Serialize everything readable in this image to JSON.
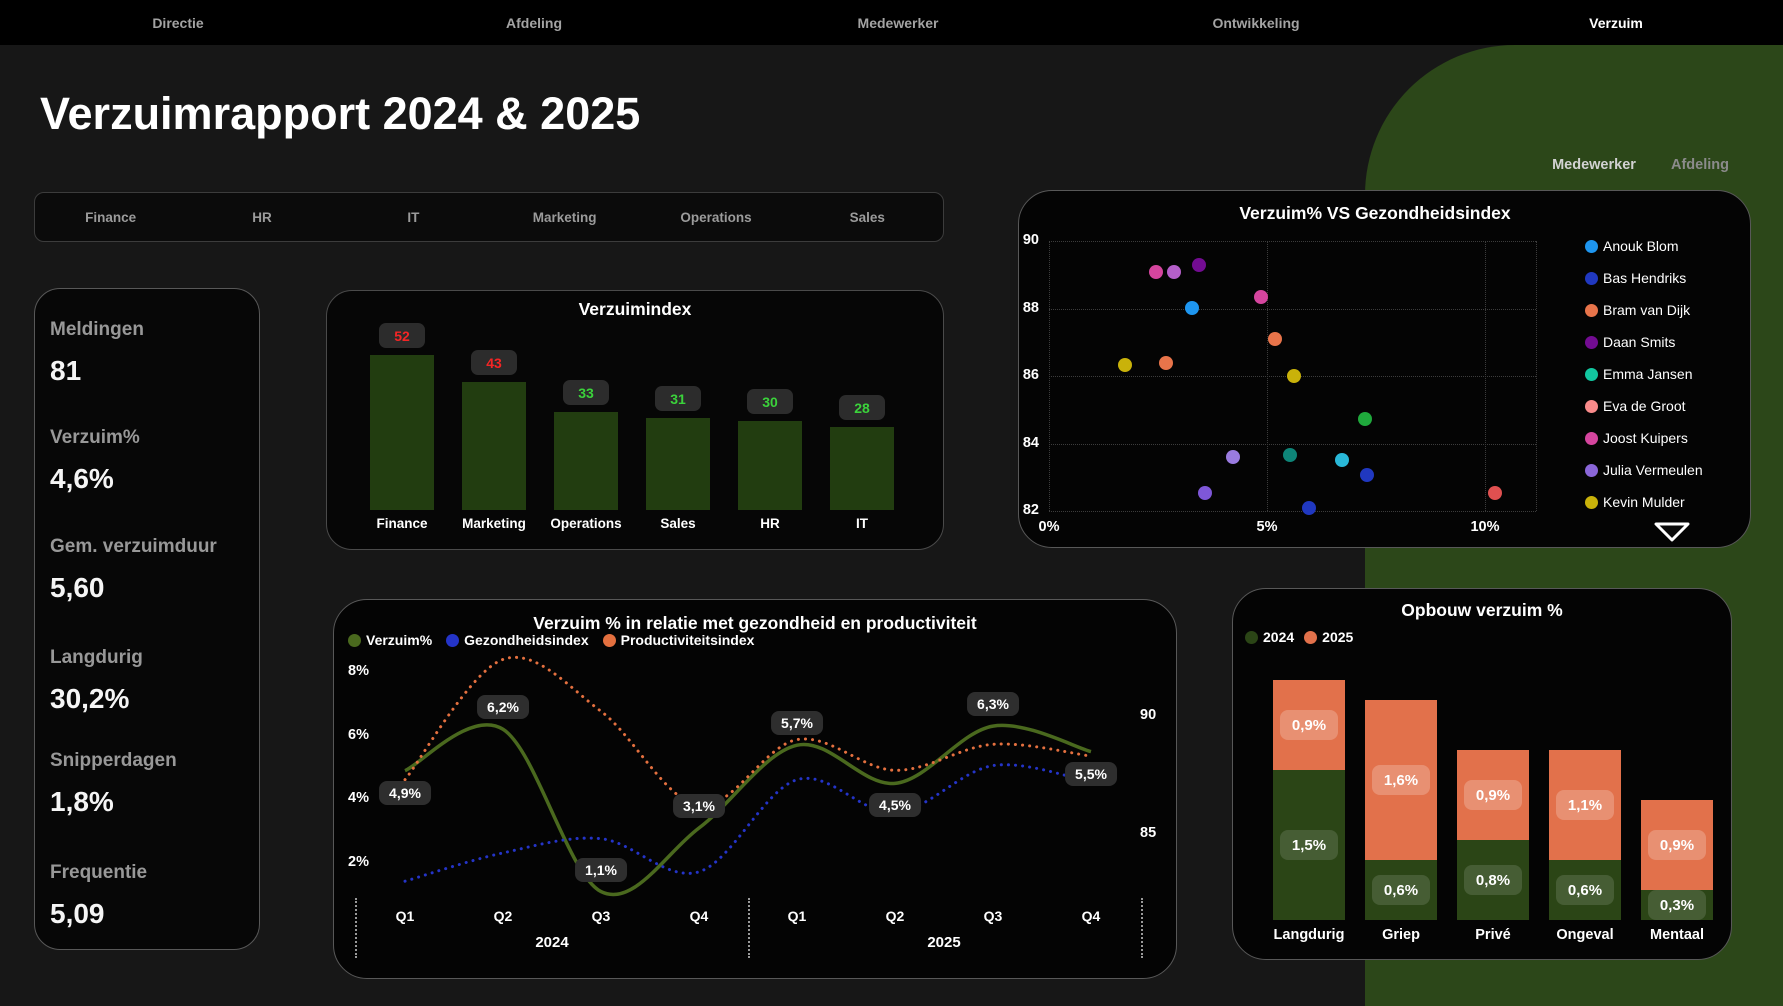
{
  "page": {
    "title": "Verzuimrapport 2024 & 2025"
  },
  "nav": {
    "items": [
      {
        "label": "Directie",
        "active": false
      },
      {
        "label": "Afdeling",
        "active": false
      },
      {
        "label": "Medewerker",
        "active": false
      },
      {
        "label": "Ontwikkeling",
        "active": false
      },
      {
        "label": "Verzuim",
        "active": true
      }
    ]
  },
  "slicer": {
    "items": [
      "Finance",
      "HR",
      "IT",
      "Marketing",
      "Operations",
      "Sales"
    ]
  },
  "kpis": [
    {
      "label": "Meldingen",
      "value": "81"
    },
    {
      "label": "Verzuim%",
      "value": "4,6%"
    },
    {
      "label": "Gem. verzuimduur",
      "value": "5,60"
    },
    {
      "label": "Langdurig",
      "value": "30,2%"
    },
    {
      "label": "Snipperdagen",
      "value": "1,8%"
    },
    {
      "label": "Frequentie",
      "value": "5,09"
    }
  ],
  "chart_data": [
    {
      "id": "verzuimindex",
      "type": "bar",
      "title": "Verzuimindex",
      "categories": [
        "Finance",
        "Marketing",
        "Operations",
        "Sales",
        "HR",
        "IT"
      ],
      "values": [
        52,
        43,
        33,
        31,
        30,
        28
      ],
      "value_labels": [
        "52",
        "43",
        "33",
        "31",
        "30",
        "28"
      ],
      "value_label_colors": [
        "#f42525",
        "#f42525",
        "#3bd23b",
        "#3bd23b",
        "#3bd23b",
        "#3bd23b"
      ],
      "bar_color": "#223d10",
      "ylim": [
        0,
        60
      ]
    },
    {
      "id": "scatter",
      "type": "scatter",
      "title": "Verzuim% VS Gezondheidsindex",
      "tabs": [
        {
          "label": "Medewerker",
          "active": true
        },
        {
          "label": "Afdeling",
          "active": false
        }
      ],
      "x_ticks": [
        {
          "value": 0,
          "label": "0%"
        },
        {
          "value": 5,
          "label": "5%"
        },
        {
          "value": 10,
          "label": "10%"
        }
      ],
      "y_ticks": [
        90,
        88,
        86,
        84,
        82
      ],
      "xlim": [
        0,
        11.35
      ],
      "ylim": [
        82,
        90
      ],
      "legend": [
        {
          "name": "Anouk Blom",
          "color": "#1E96F0"
        },
        {
          "name": "Bas Hendriks",
          "color": "#2038C0"
        },
        {
          "name": "Bram van Dijk",
          "color": "#E8744A"
        },
        {
          "name": "Daan Smits",
          "color": "#730C92"
        },
        {
          "name": "Emma Jansen",
          "color": "#12C7A0"
        },
        {
          "name": "Eva de Groot",
          "color": "#F98B8B"
        },
        {
          "name": "Joost Kuipers",
          "color": "#D5459E"
        },
        {
          "name": "Julia Vermeulen",
          "color": "#8A66D8"
        },
        {
          "name": "Kevin Mulder",
          "color": "#C9B20A"
        }
      ],
      "points": [
        {
          "x": 2.45,
          "y": 89.08,
          "color": "#D5459E"
        },
        {
          "x": 2.87,
          "y": 89.08,
          "color": "#B55FC9"
        },
        {
          "x": 3.43,
          "y": 89.29,
          "color": "#730C92"
        },
        {
          "x": 4.86,
          "y": 88.34,
          "color": "#D5459E"
        },
        {
          "x": 3.27,
          "y": 88.01,
          "color": "#1E96F0"
        },
        {
          "x": 5.19,
          "y": 87.1,
          "color": "#E8744A"
        },
        {
          "x": 1.75,
          "y": 86.33,
          "color": "#C9B20A"
        },
        {
          "x": 2.69,
          "y": 86.39,
          "color": "#E8744A"
        },
        {
          "x": 5.61,
          "y": 86.0,
          "color": "#C9B20A"
        },
        {
          "x": 7.25,
          "y": 84.73,
          "color": "#1FA93C"
        },
        {
          "x": 4.21,
          "y": 83.6,
          "color": "#9A7BE0"
        },
        {
          "x": 5.52,
          "y": 83.67,
          "color": "#0E8578"
        },
        {
          "x": 6.71,
          "y": 83.51,
          "color": "#29B8D8"
        },
        {
          "x": 7.29,
          "y": 83.07,
          "color": "#2038C0"
        },
        {
          "x": 3.58,
          "y": 82.53,
          "color": "#7E57D8"
        },
        {
          "x": 5.96,
          "y": 82.09,
          "color": "#2038C0"
        },
        {
          "x": 10.23,
          "y": 82.53,
          "color": "#E05050"
        }
      ]
    },
    {
      "id": "relatie",
      "type": "line",
      "title": "Verzuim % in relatie met gezondheid en productiviteit",
      "x_categories": [
        "Q1",
        "Q2",
        "Q3",
        "Q4",
        "Q1",
        "Q2",
        "Q3",
        "Q4"
      ],
      "year_groups": [
        "2024",
        "2025"
      ],
      "left_axis": {
        "ticks": [
          "8%",
          "6%",
          "4%",
          "2%"
        ],
        "tick_values": [
          8,
          6,
          4,
          2
        ]
      },
      "right_axis": {
        "ticks": [
          "90",
          "85"
        ],
        "tick_values": [
          90,
          85
        ]
      },
      "series": [
        {
          "name": "Verzuim%",
          "color": "#4a691e",
          "axis": "left",
          "style": "solid",
          "values": [
            4.9,
            6.2,
            1.1,
            3.1,
            5.7,
            4.5,
            6.3,
            5.5
          ],
          "point_labels": [
            "4,9%",
            "6,2%",
            "1,1%",
            "3,1%",
            "5,7%",
            "4,5%",
            "6,3%",
            "5,5%"
          ],
          "label_side": [
            "below",
            "above",
            "above",
            "above",
            "above",
            "below",
            "above",
            "below"
          ]
        },
        {
          "name": "Gezondheidsindex",
          "color": "#2434c8",
          "axis": "right",
          "style": "dotted",
          "values": [
            83.0,
            84.2,
            84.8,
            83.4,
            87.3,
            85.9,
            87.9,
            87.2
          ]
        },
        {
          "name": "Productiviteitsindex",
          "color": "#e4703f",
          "axis": "right",
          "style": "dotted",
          "values": [
            87.3,
            92.4,
            90.2,
            86.2,
            89.0,
            87.7,
            88.8,
            88.3
          ]
        }
      ]
    },
    {
      "id": "opbouw",
      "type": "stacked-bar",
      "title": "Opbouw verzuim %",
      "categories": [
        "Langdurig",
        "Griep",
        "Privé",
        "Ongeval",
        "Mentaal"
      ],
      "series": [
        {
          "name": "2024",
          "color": "#2B4516",
          "values": [
            1.5,
            0.6,
            0.8,
            0.6,
            0.3
          ],
          "labels": [
            "1,5%",
            "0,6%",
            "0,8%",
            "0,6%",
            "0,3%"
          ]
        },
        {
          "name": "2025",
          "color": "#E2714B",
          "values": [
            0.9,
            1.6,
            0.9,
            1.1,
            0.9
          ],
          "labels": [
            "0,9%",
            "1,6%",
            "0,9%",
            "1,1%",
            "0,9%"
          ]
        }
      ]
    }
  ]
}
